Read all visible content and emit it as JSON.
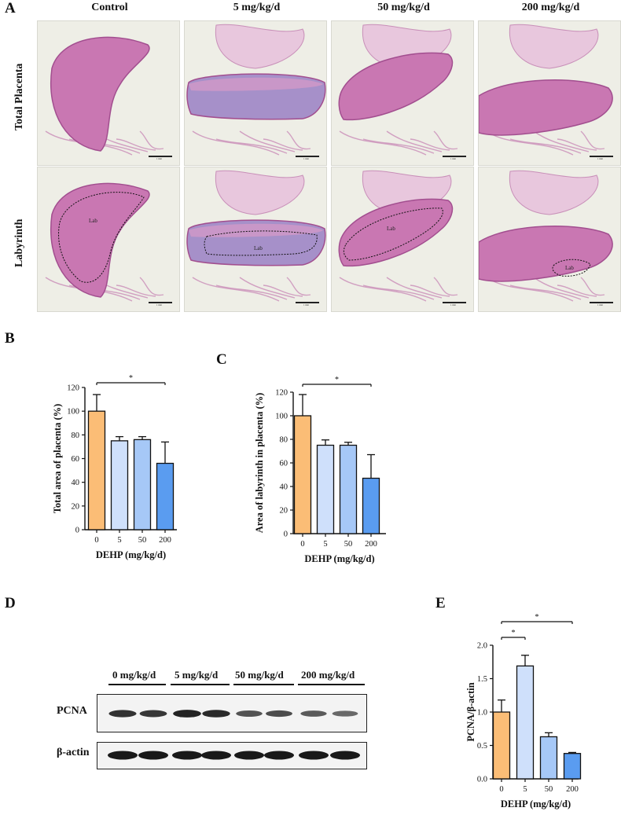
{
  "panels": {
    "A": "A",
    "B": "B",
    "C": "C",
    "D": "D",
    "E": "E"
  },
  "panel_a": {
    "columns": [
      "Control",
      "5 mg/kg/d",
      "50 mg/kg/d",
      "200 mg/kg/d"
    ],
    "rows": [
      "Total Placenta",
      "Labyrinth"
    ],
    "region_label": "Lab",
    "scalebar_label": "1 mm"
  },
  "panel_d": {
    "groups": [
      "0 mg/kg/d",
      "5 mg/kg/d",
      "50 mg/kg/d",
      "200 mg/kg/d"
    ],
    "bands": [
      "PCNA",
      "β-actin"
    ],
    "band_intensity": {
      "PCNA": [
        0.85,
        0.8,
        0.95,
        0.9,
        0.6,
        0.65,
        0.55,
        0.45
      ],
      "β-actin": [
        1,
        1,
        1,
        1,
        1,
        1,
        1,
        1
      ]
    }
  },
  "chart_data": [
    {
      "type": "bar",
      "panel": "B",
      "categories": [
        "0",
        "5",
        "50",
        "200"
      ],
      "values": [
        100,
        75,
        76,
        56
      ],
      "errors": [
        14,
        3.5,
        2.5,
        18
      ],
      "ylim": [
        0,
        120
      ],
      "yticks": [
        0,
        20,
        40,
        60,
        80,
        100,
        120
      ],
      "xlabel": "DEHP (mg/kg/d)",
      "ylabel": "Total area of placenta (%)",
      "colors": [
        "#fbbd76",
        "#cfe0fb",
        "#a6c8f7",
        "#5a9cf0"
      ],
      "significance": [
        {
          "from": "0",
          "to": "200",
          "label": "*"
        }
      ]
    },
    {
      "type": "bar",
      "panel": "C",
      "categories": [
        "0",
        "5",
        "50",
        "200"
      ],
      "values": [
        100,
        75,
        75,
        47
      ],
      "errors": [
        18,
        4.5,
        2.5,
        20
      ],
      "ylim": [
        0,
        120
      ],
      "yticks": [
        0,
        20,
        40,
        60,
        80,
        100,
        120
      ],
      "xlabel": "DEHP (mg/kg/d)",
      "ylabel": "Area of labyrinth in placenta (%)",
      "colors": [
        "#fbbd76",
        "#cfe0fb",
        "#a6c8f7",
        "#5a9cf0"
      ],
      "significance": [
        {
          "from": "0",
          "to": "200",
          "label": "*"
        }
      ]
    },
    {
      "type": "bar",
      "panel": "E",
      "categories": [
        "0",
        "5",
        "50",
        "200"
      ],
      "values": [
        1.0,
        1.69,
        0.63,
        0.38
      ],
      "errors": [
        0.18,
        0.16,
        0.06,
        0.015
      ],
      "ylim": [
        0,
        2.0
      ],
      "yticks": [
        "0.0",
        "0.5",
        "1.0",
        "1.5",
        "2.0"
      ],
      "xlabel": "DEHP (mg/kg/d)",
      "ylabel": "PCNA/β-actin",
      "colors": [
        "#fbbd76",
        "#cfe0fb",
        "#a6c8f7",
        "#5a9cf0"
      ],
      "significance": [
        {
          "from": "0",
          "to": "5",
          "label": "*"
        },
        {
          "from": "0",
          "to": "200",
          "label": "*"
        }
      ]
    }
  ]
}
